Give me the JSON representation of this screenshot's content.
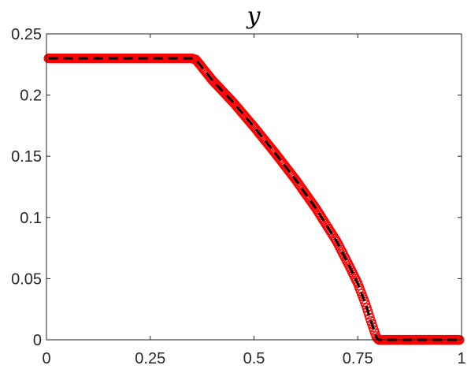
{
  "chart_data": {
    "type": "line",
    "title": "y",
    "xlabel": "",
    "ylabel": "",
    "xlim": [
      0,
      1
    ],
    "ylim": [
      0,
      0.25
    ],
    "x_ticks": [
      "0",
      "0.25",
      "0.5",
      "0.75",
      "1"
    ],
    "y_ticks": [
      "0",
      "0.05",
      "0.1",
      "0.15",
      "0.2",
      "0.25"
    ],
    "grid": false,
    "legend": "none",
    "series": [
      {
        "style": "red open circles (numerical solution)",
        "color": "#ff0000",
        "x": [
          0.0,
          0.05,
          0.1,
          0.15,
          0.2,
          0.25,
          0.3,
          0.35,
          0.36,
          0.4,
          0.45,
          0.5,
          0.55,
          0.6,
          0.65,
          0.7,
          0.73,
          0.75,
          0.77,
          0.78,
          0.79,
          0.795,
          0.8,
          0.81,
          0.85,
          0.9,
          0.95,
          1.0
        ],
        "values": [
          0.23,
          0.23,
          0.23,
          0.23,
          0.23,
          0.23,
          0.23,
          0.23,
          0.229,
          0.212,
          0.194,
          0.174,
          0.153,
          0.131,
          0.107,
          0.08,
          0.06,
          0.046,
          0.028,
          0.017,
          0.007,
          0.002,
          0.0,
          0.0,
          0.0,
          0.0,
          0.0,
          0.0
        ]
      },
      {
        "style": "black dashed line (reference solution)",
        "color": "#000000",
        "x": [
          0.0,
          0.05,
          0.1,
          0.15,
          0.2,
          0.25,
          0.3,
          0.35,
          0.36,
          0.4,
          0.45,
          0.5,
          0.55,
          0.6,
          0.65,
          0.7,
          0.73,
          0.75,
          0.77,
          0.78,
          0.79,
          0.795,
          0.8,
          0.81,
          0.85,
          0.9,
          0.95,
          1.0
        ],
        "values": [
          0.23,
          0.23,
          0.23,
          0.23,
          0.23,
          0.23,
          0.23,
          0.23,
          0.229,
          0.212,
          0.194,
          0.174,
          0.153,
          0.131,
          0.107,
          0.08,
          0.06,
          0.046,
          0.028,
          0.017,
          0.007,
          0.002,
          0.0,
          0.0,
          0.0,
          0.0,
          0.0,
          0.0
        ]
      }
    ]
  }
}
